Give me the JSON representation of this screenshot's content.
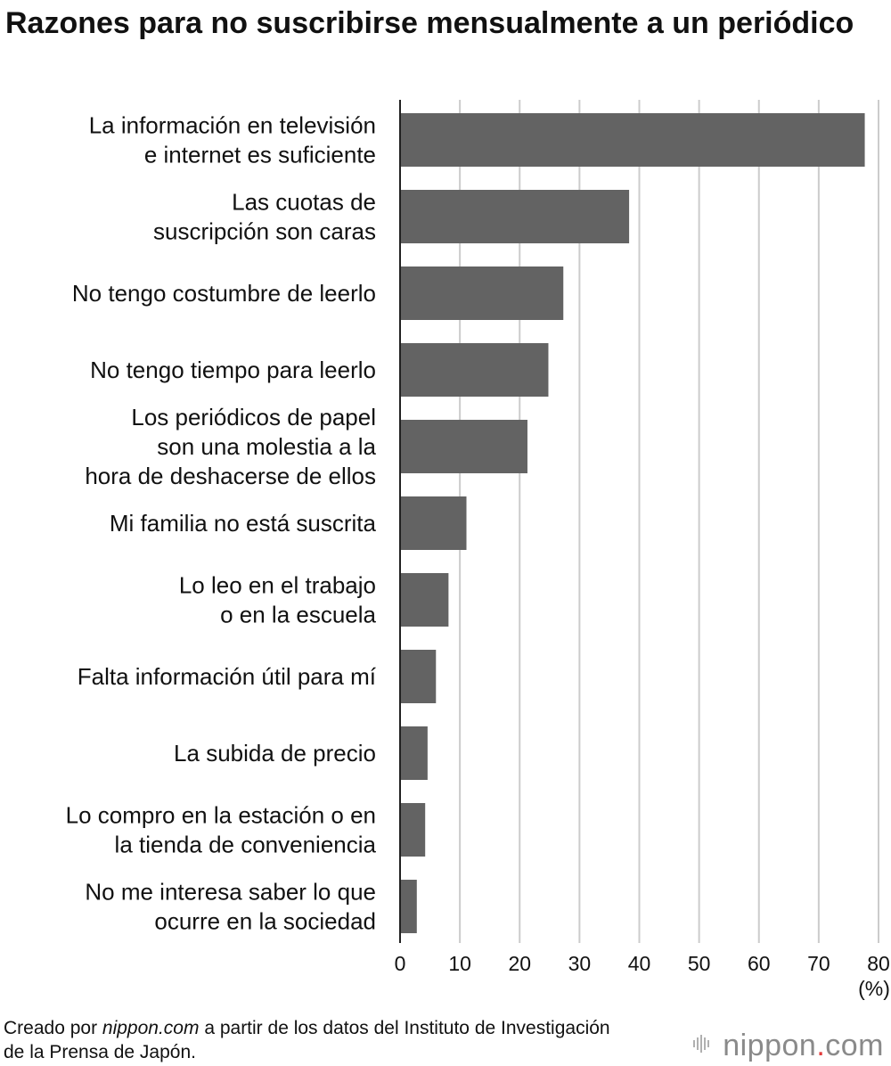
{
  "title": "Razones para no suscribirse mensualmente a un periódico",
  "footer": {
    "prefix": "Creado por ",
    "site": "nippon.com",
    "suffix": " a partir de los datos del Instituto de Investigación de la Prensa de Japón."
  },
  "logo": {
    "name": "nippon",
    "dot": ".",
    "tld": "com",
    "icon": "waveform-icon"
  },
  "colors": {
    "bar": "#636363",
    "grid": "#cccccc",
    "axis": "#222222",
    "logo_text": "#8a8a8a",
    "logo_dot": "#e23a3a"
  },
  "chart_data": {
    "type": "bar",
    "orientation": "horizontal",
    "categories": [
      [
        "La información en televisión",
        "e internet es suficiente"
      ],
      [
        "Las cuotas de",
        "suscripción son caras"
      ],
      [
        "No tengo costumbre de leerlo"
      ],
      [
        "No tengo tiempo para leerlo"
      ],
      [
        "Los periódicos de papel",
        "son una molestia a la",
        "hora de deshacerse de ellos"
      ],
      [
        "Mi familia no está suscrita"
      ],
      [
        "Lo leo en el trabajo",
        "o en la escuela"
      ],
      [
        "Falta información útil para mí"
      ],
      [
        "La subida de precio"
      ],
      [
        "Lo compro en la estación o en",
        "la tienda de conveniencia"
      ],
      [
        "No me interesa saber lo que",
        "ocurre en la sociedad"
      ]
    ],
    "values": [
      77.7,
      38.3,
      27.3,
      24.8,
      21.3,
      11.1,
      8.1,
      6.0,
      4.6,
      4.2,
      2.8
    ],
    "xlim": [
      0,
      80
    ],
    "xticks": [
      0,
      10,
      20,
      30,
      40,
      50,
      60,
      70,
      80
    ],
    "unit": "(%)",
    "grid": true
  }
}
